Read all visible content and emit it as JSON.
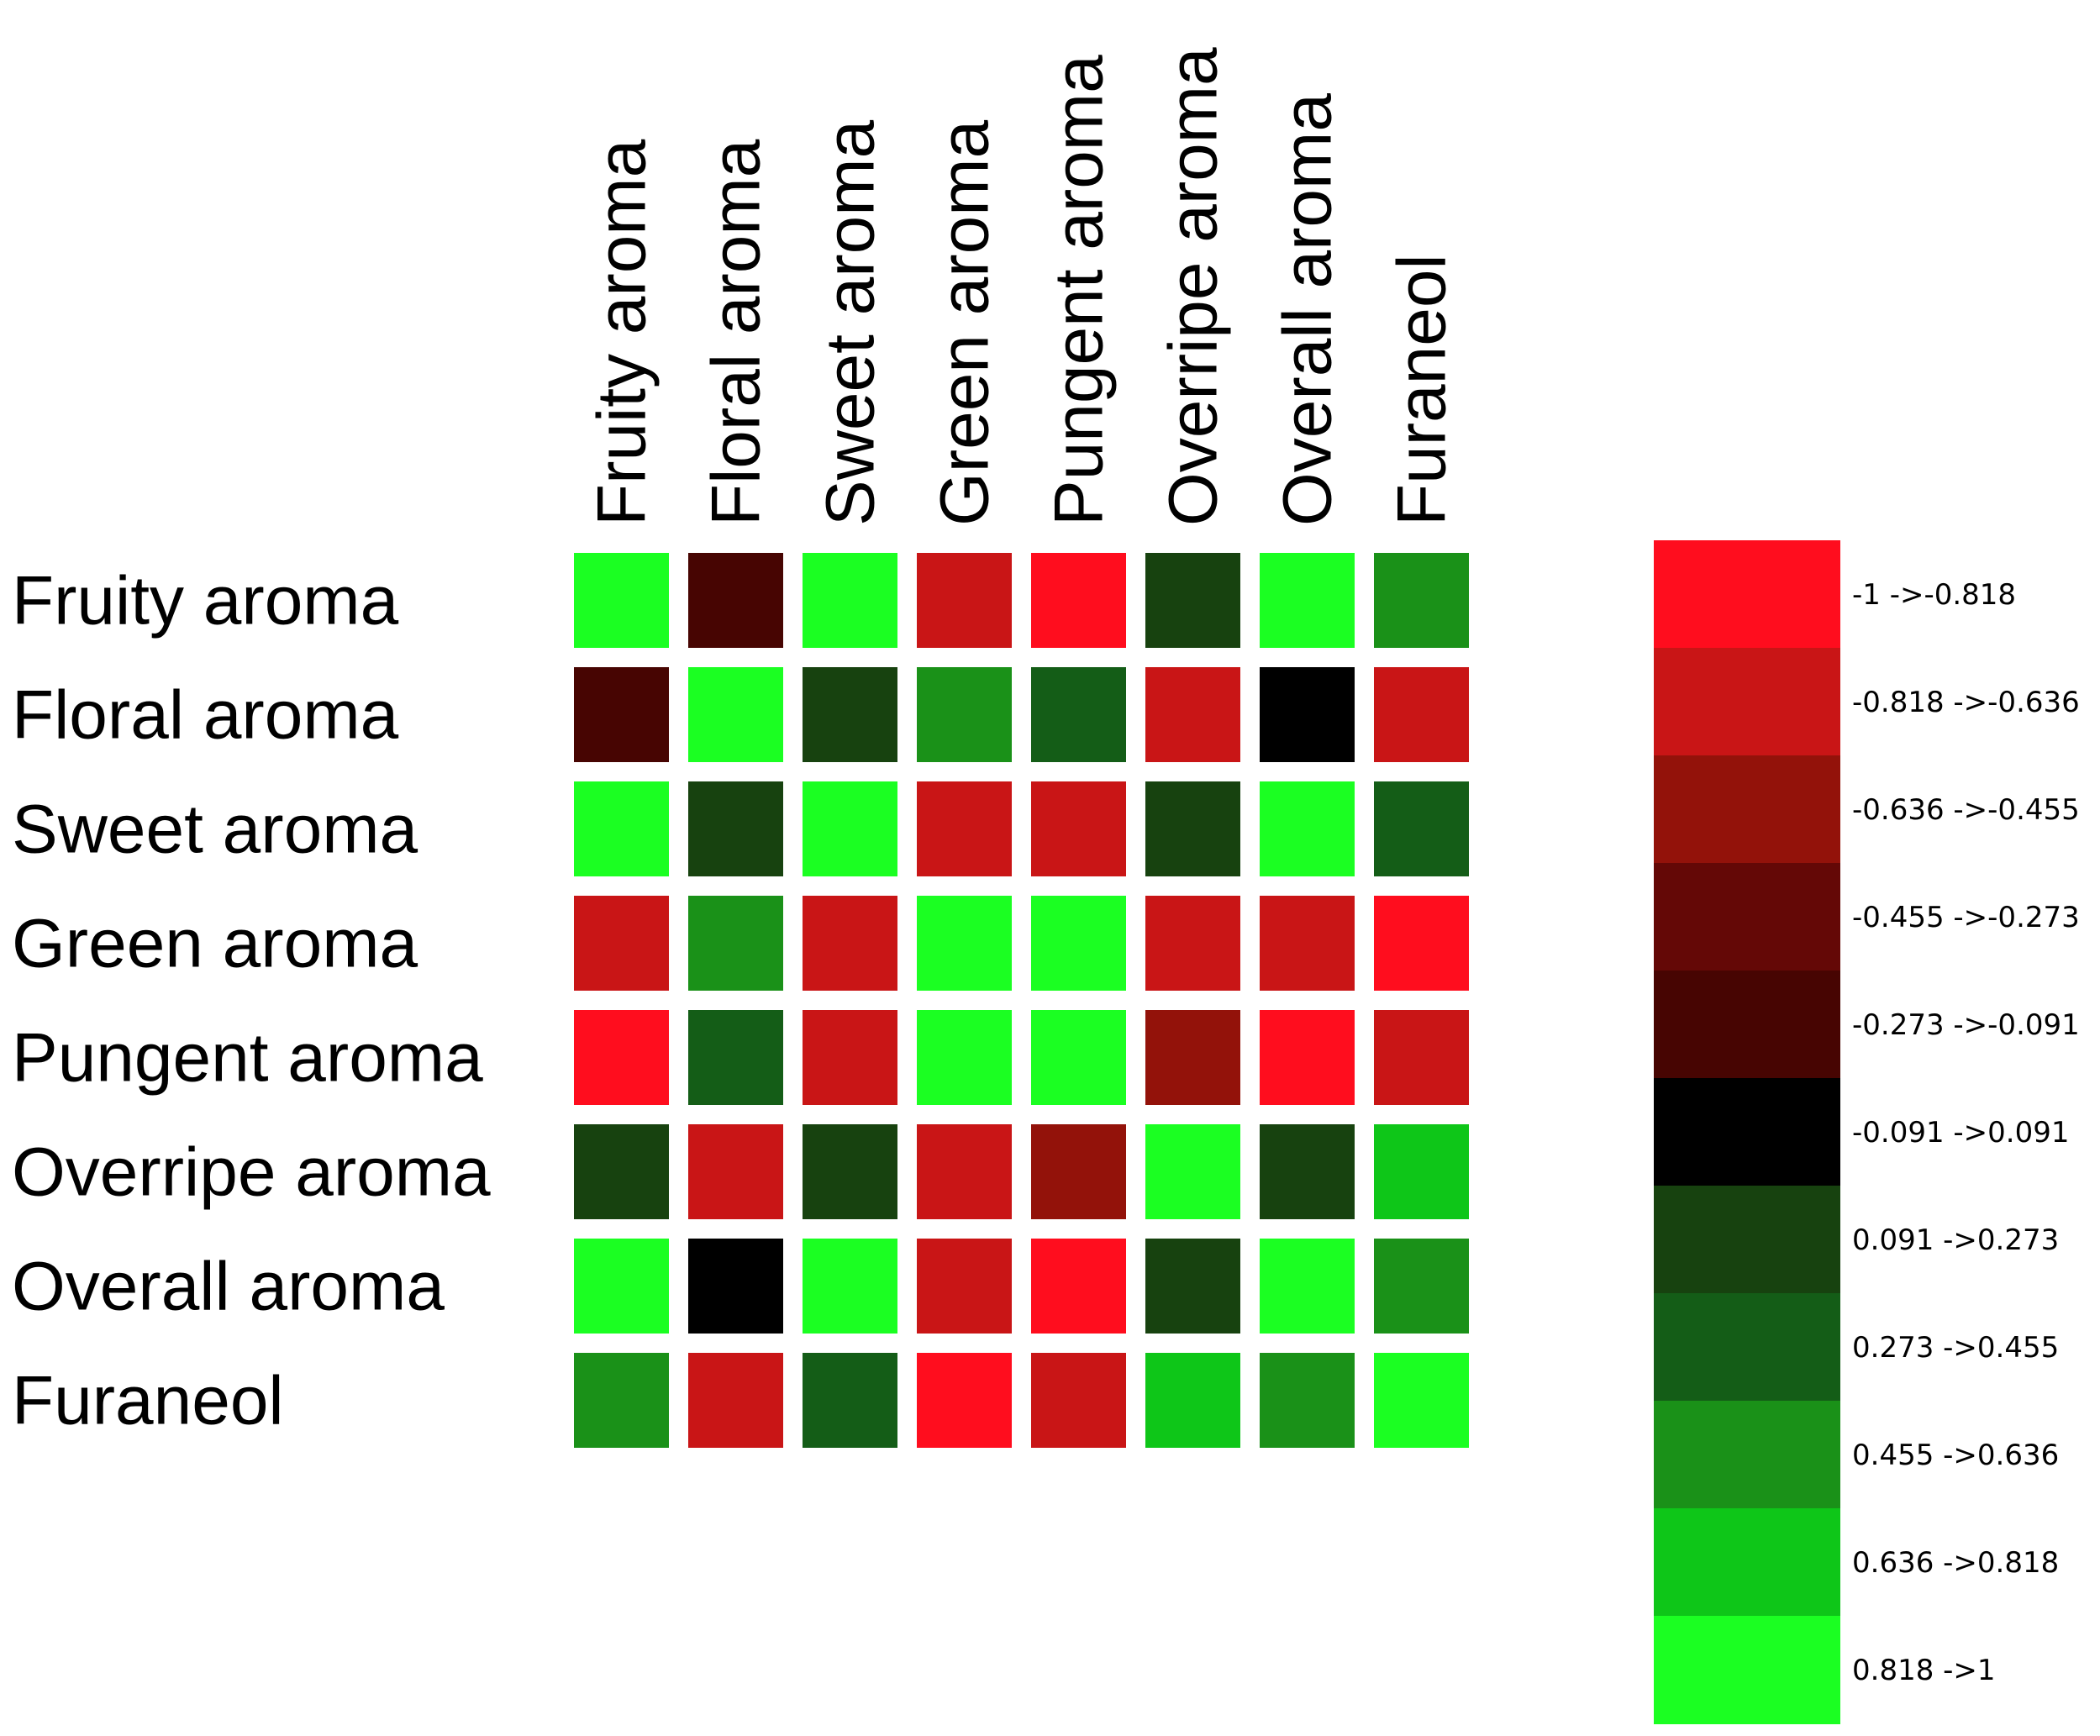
{
  "chart_data": {
    "type": "heatmap",
    "title": "",
    "xlabel": "",
    "ylabel": "",
    "rows": [
      "Fruity aroma",
      "Floral aroma",
      "Sweet aroma",
      "Green aroma",
      "Pungent aroma",
      "Overripe aroma",
      "Overall aroma",
      "Furaneol"
    ],
    "columns": [
      "Fruity aroma",
      "Floral aroma",
      "Sweet aroma",
      "Green aroma",
      "Pungent aroma",
      "Overripe aroma",
      "Overall aroma",
      "Furaneol"
    ],
    "values": [
      [
        0.909,
        -0.182,
        0.909,
        -0.727,
        -0.909,
        0.182,
        0.909,
        0.545
      ],
      [
        -0.182,
        0.909,
        0.182,
        0.545,
        0.364,
        -0.727,
        0.0,
        -0.727
      ],
      [
        0.909,
        0.182,
        0.909,
        -0.727,
        -0.727,
        0.182,
        0.909,
        0.364
      ],
      [
        -0.727,
        0.545,
        -0.727,
        0.909,
        0.909,
        -0.727,
        -0.727,
        -0.909
      ],
      [
        -0.909,
        0.364,
        -0.727,
        0.909,
        0.909,
        -0.545,
        -0.909,
        -0.727
      ],
      [
        0.182,
        -0.727,
        0.182,
        -0.727,
        -0.545,
        0.909,
        0.182,
        0.727
      ],
      [
        0.909,
        0.0,
        0.909,
        -0.727,
        -0.909,
        0.182,
        0.909,
        0.545
      ],
      [
        0.545,
        -0.727,
        0.364,
        -0.909,
        -0.727,
        0.727,
        0.545,
        0.909
      ]
    ],
    "legend_position": "right",
    "legend": [
      {
        "label": "-1 ->-0.818",
        "color": "#ff0d1e"
      },
      {
        "label": "-0.818 ->-0.636",
        "color": "#c91516"
      },
      {
        "label": "-0.636 ->-0.455",
        "color": "#93120a"
      },
      {
        "label": "-0.455 ->-0.273",
        "color": "#640806"
      },
      {
        "label": "-0.273 ->-0.091",
        "color": "#470502"
      },
      {
        "label": "-0.091 ->0.091",
        "color": "#000000"
      },
      {
        "label": "0.091 ->0.273",
        "color": "#17420f"
      },
      {
        "label": "0.273 ->0.455",
        "color": "#145d17"
      },
      {
        "label": "0.455 ->0.636",
        "color": "#1a9118"
      },
      {
        "label": "0.636 ->0.818",
        "color": "#0ec618"
      },
      {
        "label": "0.818 ->1",
        "color": "#1bff22"
      }
    ]
  }
}
